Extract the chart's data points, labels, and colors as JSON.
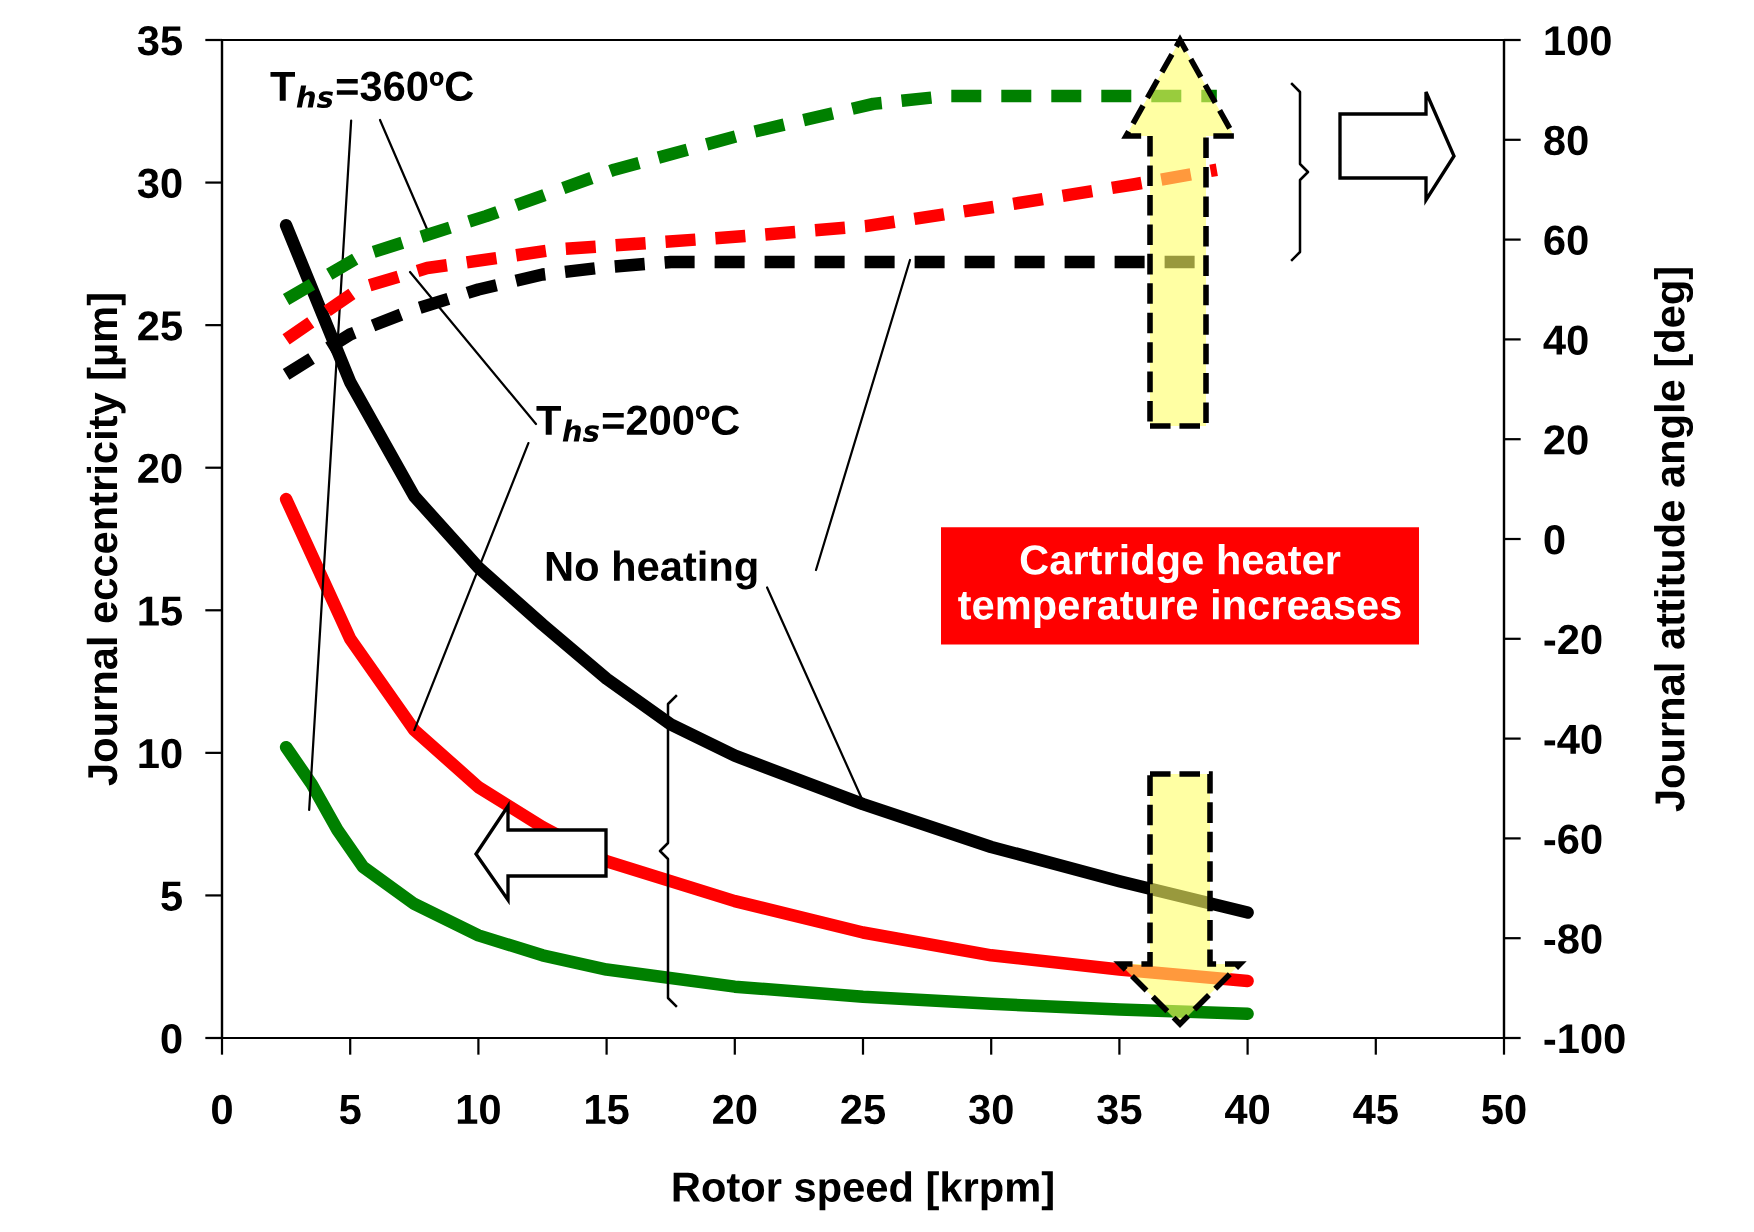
{
  "chart_data": {
    "type": "line",
    "xlabel": "Rotor speed [krpm]",
    "ylabel": "Journal eccentricity [µm]",
    "y2label": "Journal attitude angle [deg]",
    "xlim": [
      0,
      50
    ],
    "xticks": [
      0,
      5,
      10,
      15,
      20,
      25,
      30,
      35,
      40,
      45,
      50
    ],
    "ylim": [
      0,
      35
    ],
    "yticks": [
      0,
      5,
      10,
      15,
      20,
      25,
      30,
      35
    ],
    "y2lim": [
      -100,
      100
    ],
    "y2ticks": [
      -100,
      -80,
      -60,
      -40,
      -20,
      0,
      20,
      40,
      60,
      80,
      100
    ],
    "grid": false,
    "legend": false,
    "marker": "none",
    "series": [
      {
        "color": "#000000",
        "line_style": "solid",
        "x": [
          2.5,
          5,
          7.5,
          10,
          12.5,
          15,
          17.5,
          20,
          25,
          30,
          35,
          40
        ],
        "values": [
          28.5,
          23,
          19,
          16.5,
          14.5,
          12.6,
          11,
          9.9,
          8.2,
          6.7,
          5.5,
          4.4
        ]
      },
      {
        "color": "#ff0000",
        "line_style": "solid",
        "x": [
          2.5,
          5,
          7.5,
          10,
          12.5,
          15,
          20,
          25,
          30,
          35,
          40
        ],
        "values": [
          18.9,
          14,
          10.8,
          8.8,
          7.4,
          6.2,
          4.8,
          3.7,
          2.9,
          2.4,
          2.0
        ]
      },
      {
        "color": "#008000",
        "line_style": "solid",
        "x": [
          2.5,
          3.5,
          4.5,
          5.5,
          7.5,
          10,
          12.5,
          15,
          20,
          25,
          30,
          35,
          40
        ],
        "values": [
          10.2,
          8.9,
          7.3,
          6.0,
          4.7,
          3.6,
          2.9,
          2.4,
          1.8,
          1.45,
          1.2,
          1.0,
          0.85
        ]
      },
      {
        "color": "#000000",
        "line_style": "dashed",
        "axis": "y2",
        "x": [
          2.5,
          5,
          7.5,
          10,
          12.5,
          15,
          17.5,
          25,
          32,
          38.7
        ],
        "values": [
          33,
          41,
          46,
          50,
          53,
          54.5,
          55.5,
          55.5,
          55.5,
          55.5
        ]
      },
      {
        "color": "#ff0000",
        "line_style": "dashed",
        "axis": "y2",
        "x": [
          2.5,
          5.4,
          8,
          13,
          20.4,
          25.1,
          30.3,
          35.6,
          38.8
        ],
        "values": [
          40,
          50.3,
          54.3,
          58,
          60.7,
          62.7,
          66.7,
          71.1,
          74
        ]
      },
      {
        "color": "#008000",
        "line_style": "dashed",
        "axis": "y2",
        "x": [
          2.5,
          5.4,
          10.3,
          15.3,
          20.4,
          25.4,
          28.3,
          33,
          38.8
        ],
        "values": [
          48,
          56.7,
          64.7,
          74,
          81.2,
          87.2,
          88.8,
          88.8,
          88.8
        ]
      }
    ],
    "annotations": [
      {
        "text": "T$_{hs}$=360ºC",
        "x": 3.4,
        "y": 8.0
      },
      {
        "text": "T$_{hs}$=200ºC",
        "x": 7.5,
        "y": 10.8
      },
      {
        "text": "No heating",
        "x": 25.1,
        "y": 8.1
      },
      "Cartridge heater\ntemperature increases"
    ]
  }
}
